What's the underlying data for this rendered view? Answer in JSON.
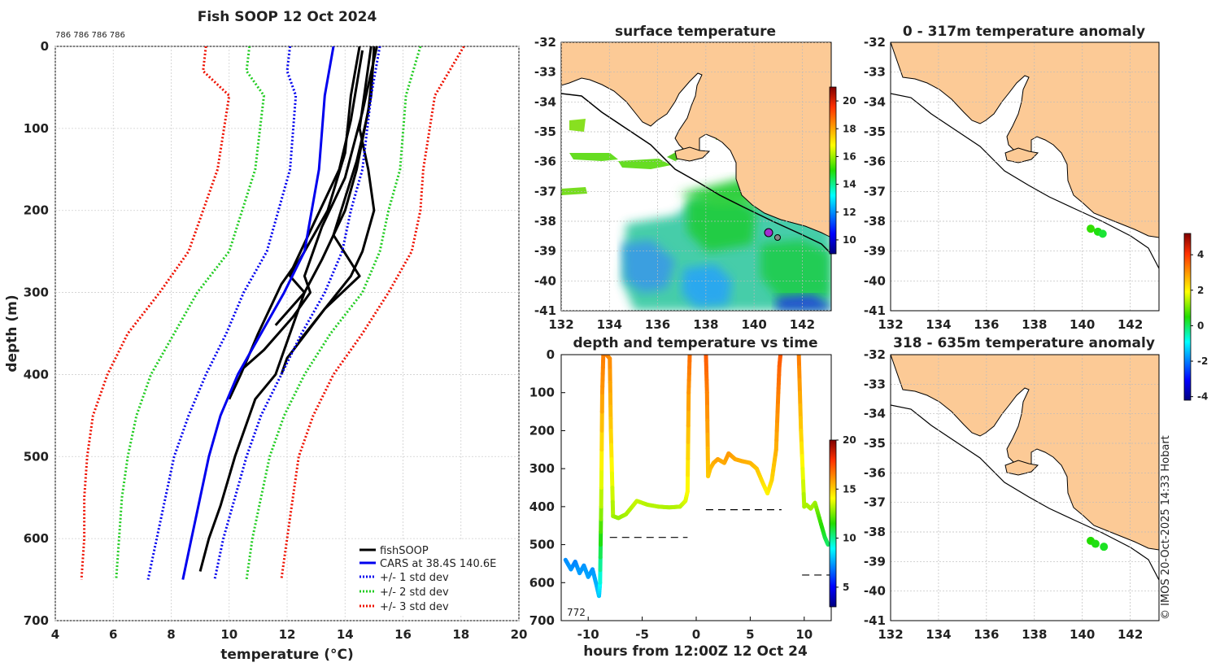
{
  "figure": {
    "title": "Fish SOOP 12 Oct 2024",
    "annotation_top": "786 786 786 786",
    "footer": "© IMOS 20-Oct-2025 14:33 Hobart",
    "colors": {
      "land": "#fcca96",
      "obs": "#000000",
      "cars": "#0000ee",
      "std1": "#0000ee",
      "std2": "#22cc22",
      "std3": "#ee1100"
    }
  },
  "chart_data": [
    {
      "id": "profile",
      "type": "line",
      "title": "Fish SOOP 12 Oct 2024",
      "xlabel": "temperature (°C)",
      "ylabel": "depth (m)",
      "xlim": [
        4,
        20
      ],
      "ylim": [
        0,
        700
      ],
      "y_inverted": true,
      "xticks": [
        4,
        6,
        8,
        10,
        12,
        14,
        16,
        18,
        20
      ],
      "yticks": [
        0,
        100,
        200,
        300,
        400,
        500,
        600,
        700
      ],
      "legend_position": "bottom-right",
      "legend": [
        "fishSOOP",
        "CARS at 38.4S 140.6E",
        "+/- 1 std dev",
        "+/- 2 std dev",
        "+/- 3 std dev"
      ],
      "series": [
        {
          "name": "fishSOOP",
          "style": "solid",
          "width": 3,
          "colorKey": "obs",
          "depth": [
            0,
            60,
            150,
            200,
            260,
            300,
            360,
            400,
            430,
            500,
            560,
            600,
            640
          ],
          "temp": [
            15.0,
            14.9,
            14.4,
            14.0,
            13.2,
            12.6,
            12.0,
            11.6,
            10.9,
            10.2,
            9.7,
            9.3,
            9.0
          ]
        },
        {
          "name": "fishSOOP",
          "style": "solid",
          "width": 3,
          "colorKey": "obs",
          "depth": [
            0,
            50,
            100,
            150,
            200,
            250,
            280,
            320,
            380,
            400
          ],
          "temp": [
            14.9,
            14.7,
            14.5,
            14.8,
            15.0,
            14.6,
            14.2,
            13.3,
            12.0,
            11.8
          ]
        },
        {
          "name": "fishSOOP",
          "style": "solid",
          "width": 3,
          "colorKey": "obs",
          "depth": [
            0,
            80,
            160,
            220,
            280,
            300,
            330,
            370,
            395
          ],
          "temp": [
            15.1,
            14.6,
            14.0,
            13.2,
            12.6,
            12.8,
            12.2,
            11.2,
            10.4
          ]
        },
        {
          "name": "fishSOOP",
          "style": "solid",
          "width": 3,
          "colorKey": "obs",
          "depth": [
            5,
            90,
            150,
            210,
            270,
            290,
            350,
            400,
            430
          ],
          "temp": [
            14.6,
            14.2,
            13.8,
            13.0,
            12.2,
            11.8,
            11.0,
            10.4,
            10.0
          ]
        },
        {
          "name": "fishSOOP",
          "style": "solid",
          "width": 3,
          "colorKey": "obs",
          "depth": [
            0,
            60,
            130,
            200,
            250,
            280,
            300,
            340
          ],
          "temp": [
            14.5,
            14.2,
            14.0,
            13.4,
            12.6,
            12.1,
            12.6,
            11.6
          ]
        },
        {
          "name": "fishSOOP",
          "style": "solid",
          "width": 3,
          "colorKey": "obs",
          "depth": [
            10,
            80,
            140,
            230,
            280,
            320,
            360
          ],
          "temp": [
            15.0,
            14.8,
            14.4,
            13.6,
            14.5,
            13.3,
            12.4
          ]
        },
        {
          "name": "CARS at 38.4S 140.6E",
          "style": "solid",
          "width": 3,
          "colorKey": "cars",
          "depth": [
            0,
            60,
            150,
            250,
            300,
            350,
            400,
            450,
            500,
            550,
            600,
            650
          ],
          "temp": [
            13.6,
            13.3,
            13.1,
            12.6,
            11.9,
            11.1,
            10.3,
            9.7,
            9.3,
            9.0,
            8.7,
            8.4
          ]
        },
        {
          "name": "+/- 1 std dev",
          "style": "dotted",
          "width": 3,
          "colorKey": "std1",
          "depth": [
            0,
            30,
            60,
            150,
            250,
            300,
            350,
            400,
            450,
            500,
            550,
            600,
            650
          ],
          "temp": [
            12.1,
            12.0,
            12.3,
            12.1,
            11.3,
            10.5,
            9.9,
            9.2,
            8.6,
            8.1,
            7.8,
            7.5,
            7.2
          ]
        },
        {
          "name": "+/- 1 std dev",
          "style": "dotted",
          "width": 3,
          "colorKey": "std1",
          "depth": [
            0,
            60,
            150,
            200,
            250,
            300,
            350,
            400,
            450,
            500,
            550,
            600,
            650
          ],
          "temp": [
            15.2,
            14.9,
            14.6,
            14.2,
            13.9,
            13.3,
            12.5,
            11.8,
            11.1,
            10.6,
            10.2,
            9.8,
            9.5
          ]
        },
        {
          "name": "+/- 2 std dev",
          "style": "dotted",
          "width": 3,
          "colorKey": "std2",
          "depth": [
            0,
            30,
            60,
            150,
            250,
            300,
            350,
            400,
            450,
            500,
            550,
            600,
            650
          ],
          "temp": [
            10.7,
            10.6,
            11.2,
            10.9,
            10.0,
            8.9,
            8.1,
            7.3,
            6.8,
            6.5,
            6.3,
            6.2,
            6.1
          ]
        },
        {
          "name": "+/- 2 std dev",
          "style": "dotted",
          "width": 3,
          "colorKey": "std2",
          "depth": [
            0,
            60,
            150,
            200,
            250,
            300,
            350,
            400,
            450,
            500,
            550,
            600,
            650
          ],
          "temp": [
            16.6,
            16.1,
            15.9,
            15.5,
            15.2,
            14.6,
            13.5,
            12.6,
            11.9,
            11.4,
            11.1,
            10.8,
            10.6
          ]
        },
        {
          "name": "+/- 3 std dev",
          "style": "dotted",
          "width": 3,
          "colorKey": "std3",
          "depth": [
            0,
            30,
            60,
            150,
            250,
            300,
            350,
            400,
            450,
            500,
            550,
            600,
            650
          ],
          "temp": [
            9.2,
            9.1,
            10.0,
            9.6,
            8.6,
            7.6,
            6.5,
            5.8,
            5.3,
            5.1,
            5.0,
            5.0,
            4.9
          ]
        },
        {
          "name": "+/- 3 std dev",
          "style": "dotted",
          "width": 3,
          "colorKey": "std3",
          "depth": [
            0,
            60,
            150,
            200,
            250,
            300,
            350,
            400,
            450,
            500,
            550,
            600,
            650
          ],
          "temp": [
            18.1,
            17.1,
            16.7,
            16.6,
            16.3,
            15.5,
            14.6,
            13.6,
            12.9,
            12.4,
            12.2,
            12.0,
            11.8
          ]
        }
      ]
    },
    {
      "id": "sst-map",
      "type": "heatmap",
      "title": "surface temperature",
      "xlim": [
        132,
        143.2
      ],
      "ylim": [
        -41,
        -32
      ],
      "xticks": [
        132,
        134,
        136,
        138,
        140,
        142
      ],
      "yticks": [
        -32,
        -33,
        -34,
        -35,
        -36,
        -37,
        -38,
        -39,
        -40,
        -41
      ],
      "colorbar": {
        "min": 9,
        "max": 21,
        "ticks": [
          10,
          12,
          14,
          16,
          18,
          20
        ]
      }
    },
    {
      "id": "depth-time",
      "type": "line",
      "title": "depth and temperature vs time",
      "xlabel": "hours from 12:00Z 12 Oct 24",
      "xlim": [
        -12.5,
        12.5
      ],
      "ylim": [
        0,
        700
      ],
      "y_inverted": true,
      "xticks": [
        -10,
        -5,
        0,
        5,
        10
      ],
      "yticks": [
        0,
        100,
        200,
        300,
        400,
        500,
        600,
        700
      ],
      "annotation": "772",
      "series": [
        {
          "name": "track",
          "hours": [
            -12.1,
            -11.6,
            -11.2,
            -10.8,
            -10.4,
            -10.0,
            -9.6,
            -9.2,
            -9.0,
            -8.9,
            -8.8,
            -8.7,
            -8.6,
            -8.3,
            -8.0,
            -7.9,
            -7.7,
            -7.2,
            -6.5,
            -5.5,
            -4.5,
            -3.5,
            -2.5,
            -1.5,
            -1.0,
            -0.8,
            -0.7,
            -0.6
          ],
          "depth": [
            540,
            565,
            545,
            575,
            555,
            585,
            565,
            610,
            635,
            600,
            400,
            100,
            0,
            0,
            10,
            200,
            425,
            430,
            420,
            385,
            395,
            400,
            402,
            400,
            385,
            360,
            100,
            0
          ],
          "temp": [
            7.2,
            7.4,
            7.0,
            7.5,
            7.3,
            7.6,
            7.3,
            7.8,
            8.0,
            9,
            13,
            16,
            16.5,
            16.5,
            16.3,
            15,
            13,
            12.8,
            13,
            13.4,
            13.2,
            13.2,
            13.1,
            13.2,
            13.6,
            14,
            16,
            16.8
          ]
        },
        {
          "name": "track2",
          "hours": [
            0.9,
            1.0,
            1.1,
            1.3,
            1.6,
            2.0,
            2.6,
            3.0,
            3.6,
            4.2,
            5.0,
            5.6,
            6.2,
            6.6,
            7.0,
            7.4,
            7.6,
            7.7,
            7.8
          ],
          "depth": [
            0,
            100,
            320,
            300,
            285,
            275,
            285,
            260,
            275,
            280,
            285,
            300,
            340,
            365,
            330,
            250,
            100,
            30,
            0
          ],
          "temp": [
            17.2,
            16.5,
            15,
            15.2,
            15.5,
            15.8,
            15.6,
            16,
            15.7,
            15.6,
            15.5,
            15.2,
            14.6,
            14.2,
            14.8,
            15.5,
            16.5,
            17,
            17.2
          ]
        },
        {
          "name": "track3",
          "hours": [
            9.5,
            9.7,
            10.0,
            10.2,
            10.6,
            11.0,
            11.4,
            11.9,
            12.2
          ],
          "depth": [
            0,
            200,
            400,
            395,
            405,
            390,
            430,
            480,
            500
          ],
          "temp": [
            16.6,
            15,
            13,
            13.1,
            13,
            13,
            12,
            11,
            10.5
          ]
        }
      ],
      "mean_depth_lines": [
        {
          "hours": [
            -8.0,
            -0.8
          ],
          "depth": 481
        },
        {
          "hours": [
            0.9,
            7.9
          ],
          "depth": 408
        },
        {
          "hours": [
            9.8,
            12.5
          ],
          "depth": 580
        }
      ],
      "colorbar": {
        "min": 3,
        "max": 20,
        "ticks": [
          5,
          10,
          15,
          20
        ]
      }
    },
    {
      "id": "anomaly-map-1",
      "type": "scatter",
      "title": "0 - 317m temperature anomaly",
      "xlim": [
        132,
        143.2
      ],
      "ylim": [
        -41,
        -32
      ],
      "xticks": [
        132,
        134,
        136,
        138,
        140,
        142
      ],
      "yticks": [
        -32,
        -33,
        -34,
        -35,
        -36,
        -37,
        -38,
        -39,
        -40,
        -41
      ],
      "points": [
        {
          "lon": 140.35,
          "lat": -38.25,
          "anomaly": 0.6
        },
        {
          "lon": 140.65,
          "lat": -38.35,
          "anomaly": 0.4
        },
        {
          "lon": 140.85,
          "lat": -38.42,
          "anomaly": 0.2
        }
      ]
    },
    {
      "id": "anomaly-map-2",
      "type": "scatter",
      "title": "318 - 635m temperature anomaly",
      "xlim": [
        132,
        143.2
      ],
      "ylim": [
        -41,
        -32
      ],
      "xticks": [
        132,
        134,
        136,
        138,
        140,
        142
      ],
      "yticks": [
        -32,
        -33,
        -34,
        -35,
        -36,
        -37,
        -38,
        -39,
        -40,
        -41
      ],
      "points": [
        {
          "lon": 140.35,
          "lat": -38.3,
          "anomaly": 0.5
        },
        {
          "lon": 140.55,
          "lat": -38.4,
          "anomaly": 0.4
        },
        {
          "lon": 140.9,
          "lat": -38.5,
          "anomaly": 0.3
        }
      ]
    }
  ],
  "anomaly_colorbar": {
    "min": -4.2,
    "max": 5.2,
    "ticks": [
      -4,
      -2,
      0,
      2,
      4
    ]
  }
}
